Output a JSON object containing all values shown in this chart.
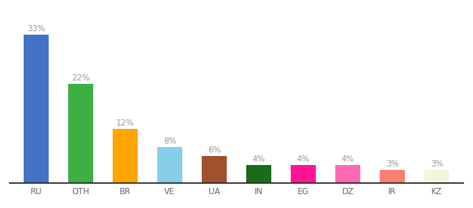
{
  "categories": [
    "RU",
    "OTH",
    "BR",
    "VE",
    "UA",
    "IN",
    "EG",
    "DZ",
    "IR",
    "KZ"
  ],
  "values": [
    33,
    22,
    12,
    8,
    6,
    4,
    4,
    4,
    3,
    3
  ],
  "bar_colors": [
    "#4472C4",
    "#3CB043",
    "#FFA500",
    "#87CEEB",
    "#A0522D",
    "#1A6B1A",
    "#FF1493",
    "#FF69B4",
    "#FA8072",
    "#F5F5DC"
  ],
  "ylim": [
    0,
    37
  ],
  "bar_width": 0.55,
  "label_color": "#999999",
  "label_fontsize": 8.5,
  "tick_fontsize": 8.5,
  "tick_color": "#666666",
  "background_color": "#ffffff",
  "spine_color": "#333333"
}
